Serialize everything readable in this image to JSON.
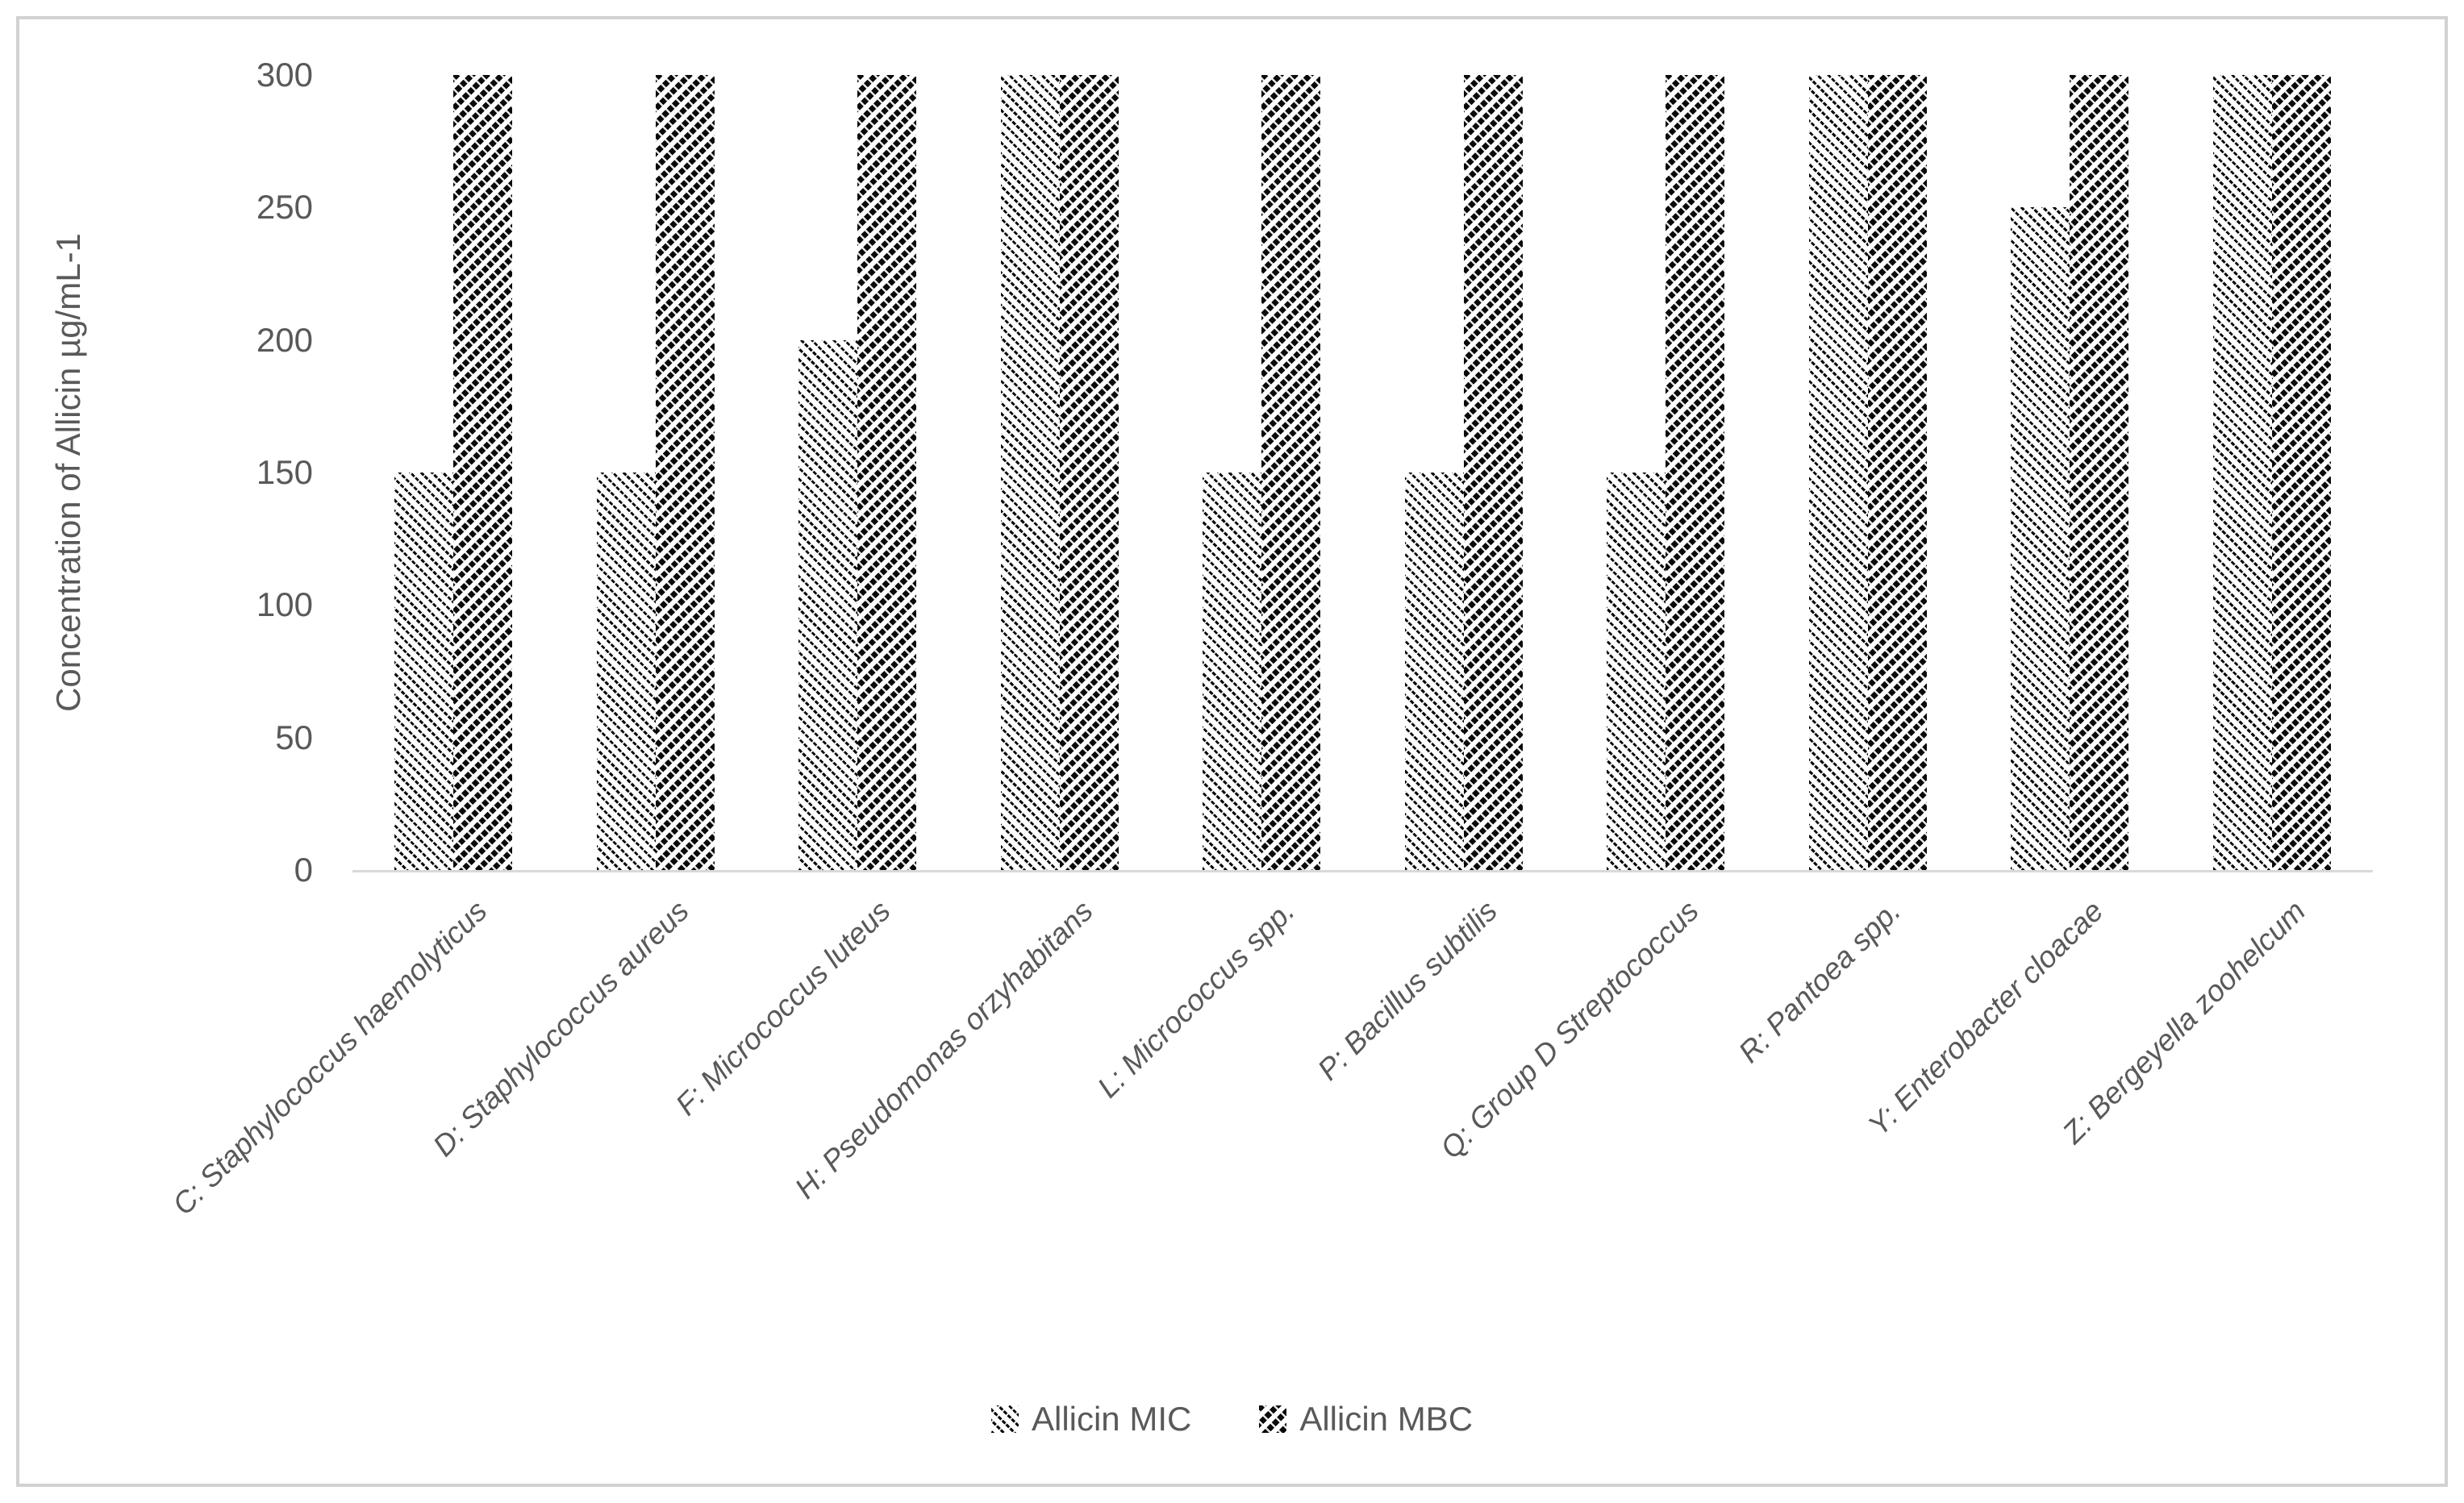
{
  "figure": {
    "y_axis": {
      "tick_labels": [
        "300",
        "250",
        "200",
        "150",
        "100",
        "50",
        "0"
      ]
    },
    "colors": {
      "text": "#595959",
      "axis_line": "#d9d9d9",
      "figure_border": "#d2d2d2",
      "pattern_foreground": "#000000",
      "pattern_background": "#ffffff"
    }
  },
  "chart_data": {
    "type": "bar",
    "title": "",
    "xlabel": "",
    "ylabel": "Concentration of Allicin µg/mL-1",
    "ylim": [
      0,
      300
    ],
    "yticks": [
      0,
      50,
      100,
      150,
      200,
      250,
      300
    ],
    "grid": false,
    "legend_position": "bottom",
    "categories": [
      "C: Staphylococcus haemolyticus",
      "D: Staphylococcus aureus",
      "F: Micrococcus luteus",
      "H: Pseudomonas orzyhabitans",
      "L: Micrococcus spp.",
      "P: Bacillus subtilis",
      "Q: Group D Streptococcus",
      "R: Pantoea spp.",
      "Y: Enterobacter cloacae",
      "Z: Bergeyella zoohelcum"
    ],
    "series": [
      {
        "name": "Allicin MIC",
        "pattern": "thin-downward-diagonal-hatch",
        "values": [
          150,
          150,
          200,
          300,
          150,
          150,
          150,
          300,
          250,
          300
        ]
      },
      {
        "name": "Allicin MBC",
        "pattern": "wide-upward-diagonal-hatch",
        "values": [
          300,
          300,
          300,
          300,
          300,
          300,
          300,
          300,
          300,
          300
        ]
      }
    ]
  }
}
